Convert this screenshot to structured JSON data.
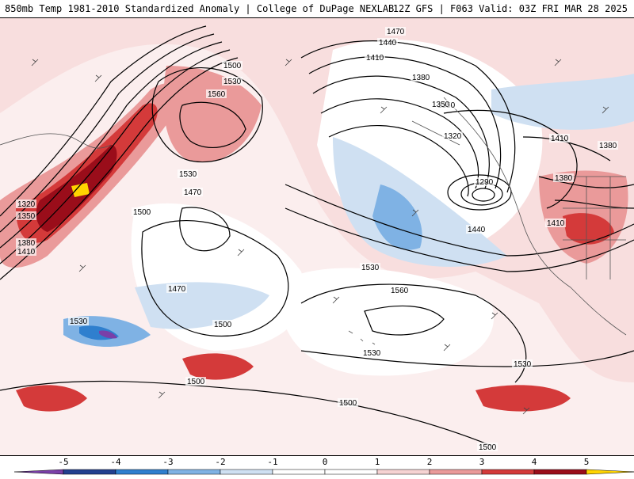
{
  "header": {
    "left_title": "850mb Temp 1981-2010 Standardized Anomaly | College of DuPage NEXLAB",
    "right_title": "12Z GFS | F063 Valid: 03Z FRI MAR 28 2025"
  },
  "colors": {
    "neg5": "#7a3fa8",
    "neg4": "#23408f",
    "neg3": "#2f7fce",
    "neg2": "#7fb2e4",
    "neg1": "#cfe0f2",
    "zero": "#ffffff",
    "pos1": "#f6d3d3",
    "pos2": "#ea9a9a",
    "pos3": "#d43a3a",
    "pos4": "#9a0d1a",
    "pos5": "#ffd400"
  },
  "colorbar": {
    "ticks": [
      "-5",
      "-4",
      "-3",
      "-2",
      "-1",
      "0",
      "1",
      "2",
      "3",
      "4",
      "5"
    ]
  },
  "contour_labels": [
    "1470",
    "1440",
    "1410",
    "1380",
    "1350",
    "1320",
    "1290",
    "1500",
    "1530",
    "1560",
    "1530",
    "1470",
    "1500",
    "1320",
    "1350",
    "1380",
    "1410",
    "1530",
    "1470",
    "1500",
    "1530",
    "1560",
    "1530",
    "1530",
    "1500",
    "1500",
    "1500",
    "1410",
    "1380",
    "1440",
    "1410",
    "1380",
    "1350"
  ]
}
